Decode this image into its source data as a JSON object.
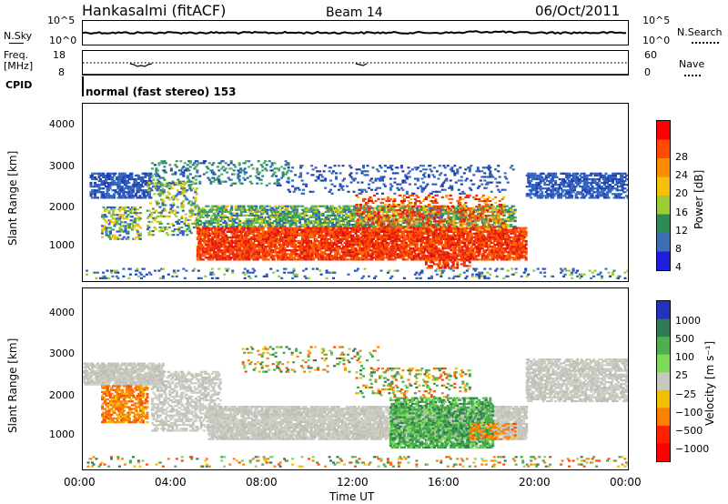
{
  "header": {
    "station": "Hankasalmi (fitACF)",
    "beam": "Beam 14",
    "date": "06/Oct/2011"
  },
  "top_panels": {
    "nsky_label": "N.Sky",
    "nsky_ticks": [
      "10^5",
      "10^0"
    ],
    "nsearch_label": "N.Search",
    "nsearch_ticks": [
      "10^5",
      "10^0"
    ],
    "freq_label_1": "Freq.",
    "freq_label_2": "[MHz]",
    "freq_ticks": [
      "18",
      "8"
    ],
    "nave_label": "Nave",
    "nave_ticks": [
      "60",
      "0"
    ],
    "cpid_label": "CPID",
    "cpid_text": "normal (fast stereo) 153"
  },
  "chart_data": [
    {
      "type": "heatmap",
      "name": "power",
      "ylabel": "Slant Range [km]",
      "y_ticks": [
        "1000",
        "2000",
        "3000",
        "4000"
      ],
      "ylim": [
        200,
        4500
      ],
      "colorbar_label": "Power [dB]",
      "colorbar_ticks": [
        "28",
        "24",
        "20",
        "16",
        "12",
        "8",
        "4"
      ],
      "colorbar_colors": [
        "#ff0000",
        "#ff4a00",
        "#ff8c00",
        "#f4c20d",
        "#9acd32",
        "#2e8b57",
        "#3b6fb6",
        "#1f1fe0"
      ],
      "dominant_colors": {
        "low": "#2e5cc8",
        "mid": "#3fa060",
        "high": "#ee2a10"
      }
    },
    {
      "type": "heatmap",
      "name": "velocity",
      "ylabel": "Slant Range [km]",
      "y_ticks": [
        "1000",
        "2000",
        "3000",
        "4000"
      ],
      "ylim": [
        200,
        4500
      ],
      "colorbar_label": "Velocity [m s⁻¹]",
      "colorbar_ticks": [
        "1000",
        "500",
        "100",
        "25",
        "−25",
        "−100",
        "−500",
        "−1000"
      ],
      "colorbar_colors": [
        "#2233bb",
        "#2e7a55",
        "#4caf50",
        "#7ed957",
        "#c8c8c0",
        "#f0c000",
        "#ff8000",
        "#ff2000",
        "#ff0000"
      ],
      "dominant_colors": {
        "ground": "#c8c8c0",
        "positive": "#3fa84a",
        "negative": "#f08020"
      }
    }
  ],
  "x_axis": {
    "ticks": [
      "00:00",
      "04:00",
      "08:00",
      "12:00",
      "16:00",
      "20:00",
      "00:00"
    ],
    "label": "Time UT"
  }
}
